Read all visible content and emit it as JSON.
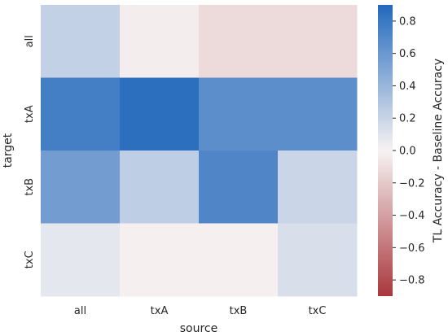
{
  "chart_data": {
    "type": "heatmap",
    "title": "",
    "xlabel": "source",
    "ylabel": "target",
    "x_categories": [
      "all",
      "txA",
      "txB",
      "txC"
    ],
    "y_categories": [
      "all",
      "txA",
      "txB",
      "txC"
    ],
    "values": [
      [
        0.22,
        -0.03,
        -0.12,
        -0.12
      ],
      [
        0.76,
        0.86,
        0.66,
        0.66
      ],
      [
        0.56,
        0.24,
        0.71,
        0.19
      ],
      [
        0.08,
        -0.02,
        -0.02,
        0.13
      ]
    ],
    "colorbar": {
      "label": "TL Accuracy - Baseline Accuracy",
      "vmin": -0.9,
      "vmax": 0.9,
      "ticks": [
        0.8,
        0.6,
        0.4,
        0.2,
        0.0,
        -0.2,
        -0.4,
        -0.6,
        -0.8
      ],
      "tick_labels": [
        "0.8",
        "0.6",
        "0.4",
        "0.2",
        "0.0",
        "−0.2",
        "−0.4",
        "−0.6",
        "−0.8"
      ],
      "cmap": "vlag"
    },
    "colors": {
      "low": "#a9373b",
      "mid": "#f7f3f3",
      "high": "#2369bd"
    },
    "grid": false
  }
}
